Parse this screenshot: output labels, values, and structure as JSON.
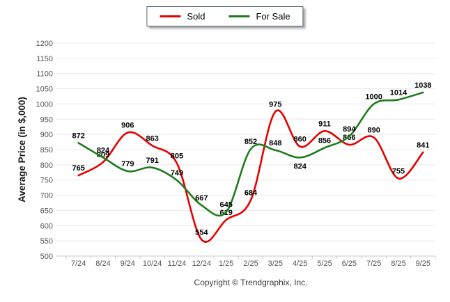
{
  "chart_data": {
    "type": "line",
    "title": "",
    "categories": [
      "7/24",
      "8/24",
      "9/24",
      "10/24",
      "11/24",
      "12/24",
      "1/25",
      "2/25",
      "3/25",
      "4/25",
      "5/25",
      "6/25",
      "7/25",
      "8/25",
      "9/25"
    ],
    "series": [
      {
        "name": "Sold",
        "color": "#e60000",
        "values": [
          765,
          809,
          906,
          863,
          805,
          554,
          619,
          684,
          975,
          860,
          911,
          866,
          890,
          755,
          841
        ],
        "label_below": []
      },
      {
        "name": "For Sale",
        "color": "#1e7b1e",
        "values": [
          872,
          824,
          779,
          791,
          749,
          667,
          645,
          852,
          848,
          824,
          856,
          894,
          1000,
          1014,
          1038
        ],
        "label_below": [
          9
        ]
      }
    ],
    "xlabel": "",
    "ylabel": "Average Price (in $,000)",
    "ylim": [
      500,
      1200
    ],
    "ytick_step": 50,
    "grid": true,
    "legend_position": "top-center",
    "grid_color": "#e8e8e8",
    "axis_color": "#c9c9c9",
    "tick_label_color": "#545454",
    "data_label_color": "#000000"
  },
  "footer": {
    "copyright": "Copyright © Trendgraphix, Inc."
  }
}
